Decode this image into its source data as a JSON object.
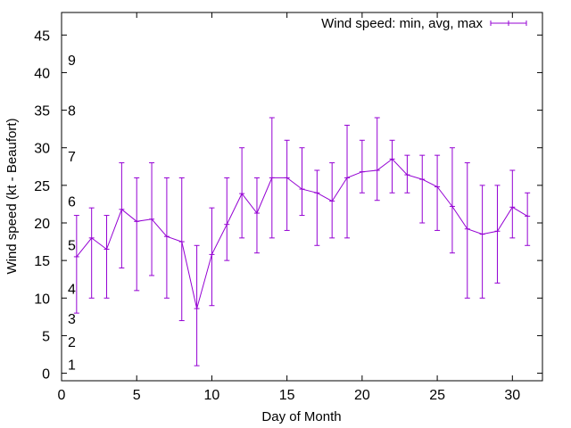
{
  "chart_data": {
    "type": "line",
    "xlabel": "Day of Month",
    "ylabel": "Wind speed (kt - Beaufort)",
    "xlim": [
      0,
      32
    ],
    "ylim": [
      -1,
      48
    ],
    "x_ticks": [
      0,
      5,
      10,
      15,
      20,
      25,
      30
    ],
    "y_ticks": [
      0,
      5,
      10,
      15,
      20,
      25,
      30,
      35,
      40,
      45
    ],
    "legend": {
      "label": "Wind speed: min, avg, max",
      "placement": "top-right"
    },
    "series_color": "#9400d3",
    "grid": false,
    "beaufort_labels": [
      {
        "text": "1",
        "y": 1.2
      },
      {
        "text": "2",
        "y": 4.2
      },
      {
        "text": "3",
        "y": 7.3
      },
      {
        "text": "4",
        "y": 11.3
      },
      {
        "text": "5",
        "y": 17.1
      },
      {
        "text": "6",
        "y": 22.9
      },
      {
        "text": "7",
        "y": 28.9
      },
      {
        "text": "8",
        "y": 35.0
      },
      {
        "text": "9",
        "y": 41.7
      }
    ],
    "series": [
      {
        "x": [
          1,
          2,
          3,
          4,
          5,
          6,
          7,
          8,
          9,
          10,
          11,
          12,
          13,
          14,
          15,
          16,
          17,
          18,
          19,
          20,
          21,
          22,
          23,
          24,
          25,
          26,
          27,
          28,
          29,
          30,
          31
        ],
        "avg": [
          15.5,
          18,
          16.5,
          21.8,
          20.2,
          20.5,
          18.2,
          17.5,
          8.6,
          15.8,
          19.8,
          23.9,
          21.3,
          26,
          26,
          24.5,
          24,
          22.9,
          26,
          26.8,
          27,
          28.5,
          26.4,
          25.8,
          24.8,
          22.2,
          19.2,
          18.5,
          18.9,
          22.1,
          20.9
        ],
        "min": [
          8,
          10,
          10,
          14,
          11,
          13,
          10,
          7,
          1,
          9,
          15,
          18,
          16,
          18,
          19,
          21,
          17,
          18,
          18,
          24,
          23,
          24,
          24,
          20,
          19,
          16,
          10,
          10,
          12,
          18,
          17
        ],
        "max": [
          21,
          22,
          21,
          28,
          26,
          28,
          26,
          26,
          17,
          22,
          26,
          30,
          26,
          34,
          31,
          30,
          27,
          28,
          33,
          31,
          34,
          31,
          29,
          29,
          29,
          30,
          28,
          25,
          25,
          27,
          24
        ]
      }
    ]
  }
}
